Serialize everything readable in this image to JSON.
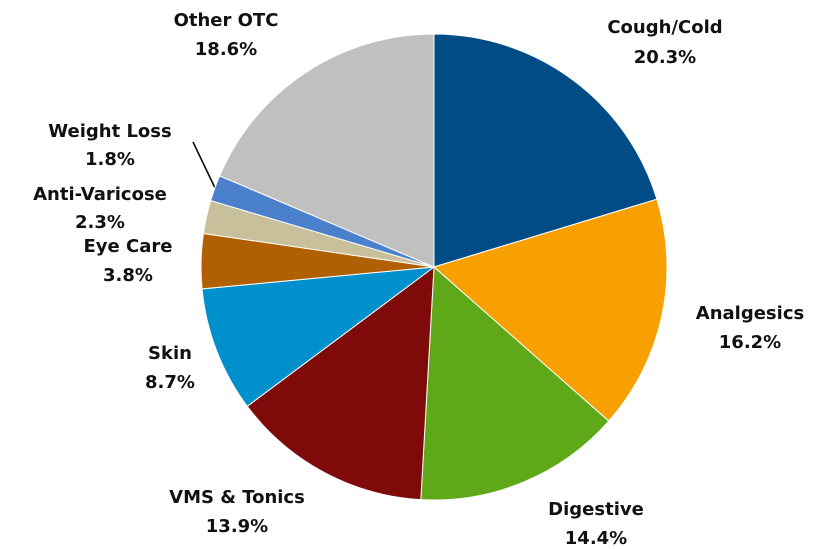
{
  "chart_data": {
    "type": "pie",
    "categories": [
      "Cough/Cold",
      "Analgesics",
      "Digestive",
      "VMS & Tonics",
      "Skin",
      "Eye Care",
      "Anti-Varicose",
      "Weight Loss",
      "Other OTC"
    ],
    "values": [
      20.3,
      16.2,
      14.4,
      13.9,
      8.7,
      3.8,
      2.3,
      1.8,
      18.6
    ],
    "value_labels": [
      "20.3%",
      "16.2%",
      "14.4%",
      "13.9%",
      "8.7%",
      "3.8%",
      "2.3%",
      "1.8%",
      "18.6%"
    ],
    "colors": [
      "#004c86",
      "#f8a000",
      "#5fa818",
      "#7f0a0a",
      "#0090cc",
      "#b06000",
      "#c8c09a",
      "#4a80cc",
      "#c0c0c0"
    ]
  }
}
